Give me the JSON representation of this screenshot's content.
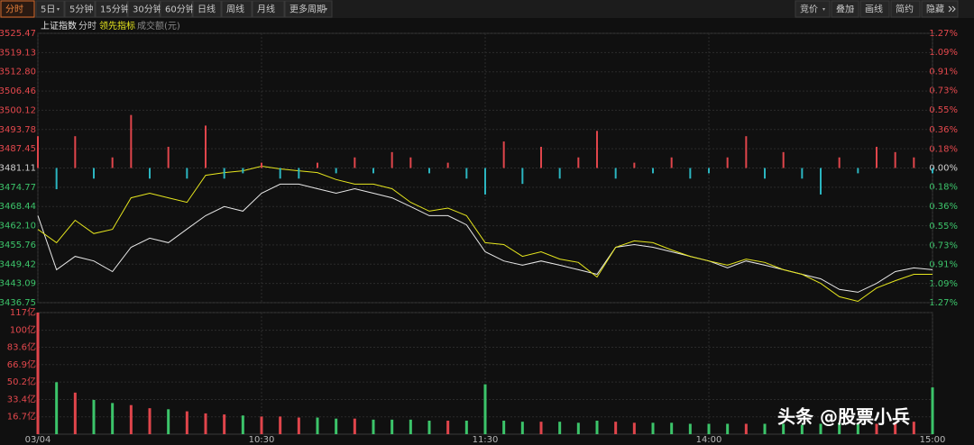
{
  "toolbar": {
    "left": [
      "分时",
      "5日",
      "5分钟",
      "15分钟",
      "30分钟",
      "60分钟",
      "日线",
      "周线",
      "月线",
      "更多周期"
    ],
    "right": [
      "竞价",
      "叠加",
      "画线",
      "简约",
      "隐藏"
    ]
  },
  "legend": {
    "index": "上证指数",
    "mode": "分时",
    "indicator": "领先指标",
    "volume": "成交额(元)"
  },
  "watermark": "头条 @股票小兵",
  "chart_data": [
    {
      "type": "line",
      "x": [
        0,
        5,
        10,
        15,
        20,
        25,
        30,
        35,
        40,
        45,
        50,
        55,
        60,
        65,
        70,
        75,
        80,
        85,
        90,
        95,
        100,
        105,
        110,
        115,
        120,
        125,
        130,
        135,
        140,
        145,
        150,
        155,
        160,
        165,
        170,
        175,
        180,
        185,
        190,
        195,
        200,
        205,
        210,
        215,
        220,
        225,
        230,
        235,
        240
      ],
      "xlim": [
        0,
        240
      ],
      "ylim": [
        3436.75,
        3525.47
      ],
      "yticks": [
        3525.47,
        3519.13,
        {
          "value": 3512.8,
          "label": "3512.80"
        },
        3506.46,
        3500.12,
        3493.78,
        3487.45,
        3481.11,
        3474.77,
        3468.44,
        {
          "value": 3462.1,
          "label": "3462.10"
        },
        3455.76,
        3449.42,
        3443.09,
        3436.75
      ],
      "y2lim": [
        -1.27,
        1.27
      ],
      "y2ticks": [
        {
          "value": 1.27,
          "label": "1.27%"
        },
        {
          "value": 1.09,
          "label": "1.09%"
        },
        {
          "value": 0.91,
          "label": "0.91%"
        },
        {
          "value": 0.73,
          "label": "0.73%"
        },
        {
          "value": 0.55,
          "label": "0.55%"
        },
        {
          "value": 0.36,
          "label": "0.36%"
        },
        {
          "value": 0.18,
          "label": "0.18%"
        },
        {
          "value": 0,
          "label": "0.00%"
        },
        {
          "value": -0.18,
          "label": "0.18%"
        },
        {
          "value": -0.36,
          "label": "0.36%"
        },
        {
          "value": -0.55,
          "label": "0.55%"
        },
        {
          "value": -0.73,
          "label": "0.73%"
        },
        {
          "value": -0.91,
          "label": "0.91%"
        },
        {
          "value": -1.09,
          "label": "1.09%"
        },
        {
          "value": -1.27,
          "label": "1.27%"
        }
      ],
      "grid": true,
      "series": [
        {
          "name": "上证指数",
          "color": "#e8e8e8",
          "values": [
            3465.4,
            3447.6,
            3452.0,
            3450.5,
            3447.0,
            3455.0,
            3458.0,
            3456.5,
            3461.0,
            3465.4,
            3468.4,
            3466.9,
            3472.8,
            3475.8,
            3475.8,
            3474.3,
            3472.8,
            3474.3,
            3472.8,
            3471.3,
            3468.4,
            3465.4,
            3465.4,
            3462.4,
            3453.5,
            3450.5,
            3449.1,
            3450.5,
            3449.1,
            3447.6,
            3446.1,
            3455.0,
            3455.9,
            3455.0,
            3453.5,
            3452.0,
            3450.5,
            3448.2,
            3450.5,
            3449.1,
            3447.6,
            3446.1,
            3444.6,
            3441.1,
            3440.2,
            3443.1,
            3447.0,
            3448.2,
            3447.6
          ]
        },
        {
          "name": "领先指标",
          "color": "#e6e61e",
          "values": [
            3460.9,
            3456.5,
            3463.9,
            3459.5,
            3460.9,
            3471.3,
            3472.8,
            3471.3,
            3469.8,
            3478.7,
            3479.6,
            3480.2,
            3481.7,
            3480.8,
            3480.2,
            3479.6,
            3477.3,
            3475.8,
            3475.8,
            3474.3,
            3469.8,
            3466.9,
            3467.9,
            3465.4,
            3456.5,
            3455.9,
            3452.0,
            3453.5,
            3451.1,
            3450.0,
            3445.2,
            3455.0,
            3457.1,
            3456.5,
            3454.1,
            3452.0,
            3450.5,
            3449.1,
            3451.1,
            3450.0,
            3447.6,
            3446.1,
            3443.1,
            3438.7,
            3437.2,
            3441.6,
            3444.0,
            3446.1,
            3446.1
          ]
        },
        {
          "type": "bar",
          "axis": "y2",
          "color": "#e0454b",
          "negative_color": "#2bb5c0",
          "values": [
            0.3,
            -0.2,
            0.3,
            -0.1,
            0.1,
            0.5,
            -0.1,
            0.2,
            -0.1,
            0.4,
            -0.1,
            -0.05,
            0.05,
            -0.1,
            -0.1,
            0.05,
            -0.05,
            0.1,
            -0.05,
            0.15,
            0.1,
            -0.05,
            0.05,
            -0.1,
            -0.25,
            0.25,
            -0.15,
            0.2,
            -0.1,
            0.1,
            0.35,
            -0.1,
            0.05,
            -0.05,
            0.1,
            -0.1,
            -0.05,
            0.1,
            0.3,
            -0.1,
            0.15,
            -0.1,
            -0.25,
            0.1,
            -0.05,
            0.2,
            0.15,
            0.1,
            -0.05
          ]
        }
      ]
    },
    {
      "type": "bar",
      "x": [
        0,
        5,
        10,
        15,
        20,
        25,
        30,
        35,
        40,
        45,
        50,
        55,
        60,
        65,
        70,
        75,
        80,
        85,
        90,
        95,
        100,
        105,
        110,
        115,
        120,
        125,
        130,
        135,
        140,
        145,
        150,
        155,
        160,
        165,
        170,
        175,
        180,
        185,
        190,
        195,
        200,
        205,
        210,
        215,
        220,
        225,
        230,
        235,
        240
      ],
      "xlim": [
        0,
        240
      ],
      "xticks": [
        {
          "value": 0,
          "label": "03/04"
        },
        {
          "value": 60,
          "label": "10:30"
        },
        {
          "value": 120,
          "label": "11:30"
        },
        {
          "value": 180,
          "label": "14:00"
        },
        {
          "value": 240,
          "label": "15:00"
        }
      ],
      "ylim": [
        0,
        117
      ],
      "yticks": [
        {
          "value": 117,
          "label": "117亿"
        },
        {
          "value": 100,
          "label": "100亿"
        },
        {
          "value": 83.6,
          "label": "83.6亿"
        },
        {
          "value": 66.9,
          "label": "66.9亿"
        },
        {
          "value": 50.2,
          "label": "50.2亿"
        },
        {
          "value": 33.4,
          "label": "33.4亿"
        },
        {
          "value": 16.7,
          "label": "16.7亿"
        }
      ],
      "grid": true,
      "color": "#e0454b",
      "negative_color": "#3cc46a",
      "values": [
        117,
        50,
        40,
        33,
        30,
        28,
        25,
        24,
        22,
        20,
        19,
        18,
        17,
        17,
        16,
        16,
        15,
        15,
        14,
        14,
        14,
        13,
        13,
        13,
        48,
        13,
        12,
        12,
        12,
        11,
        13,
        12,
        11,
        11,
        11,
        10,
        10,
        10,
        10,
        10,
        10,
        9,
        10,
        11,
        10,
        10,
        11,
        12,
        45
      ]
    }
  ]
}
